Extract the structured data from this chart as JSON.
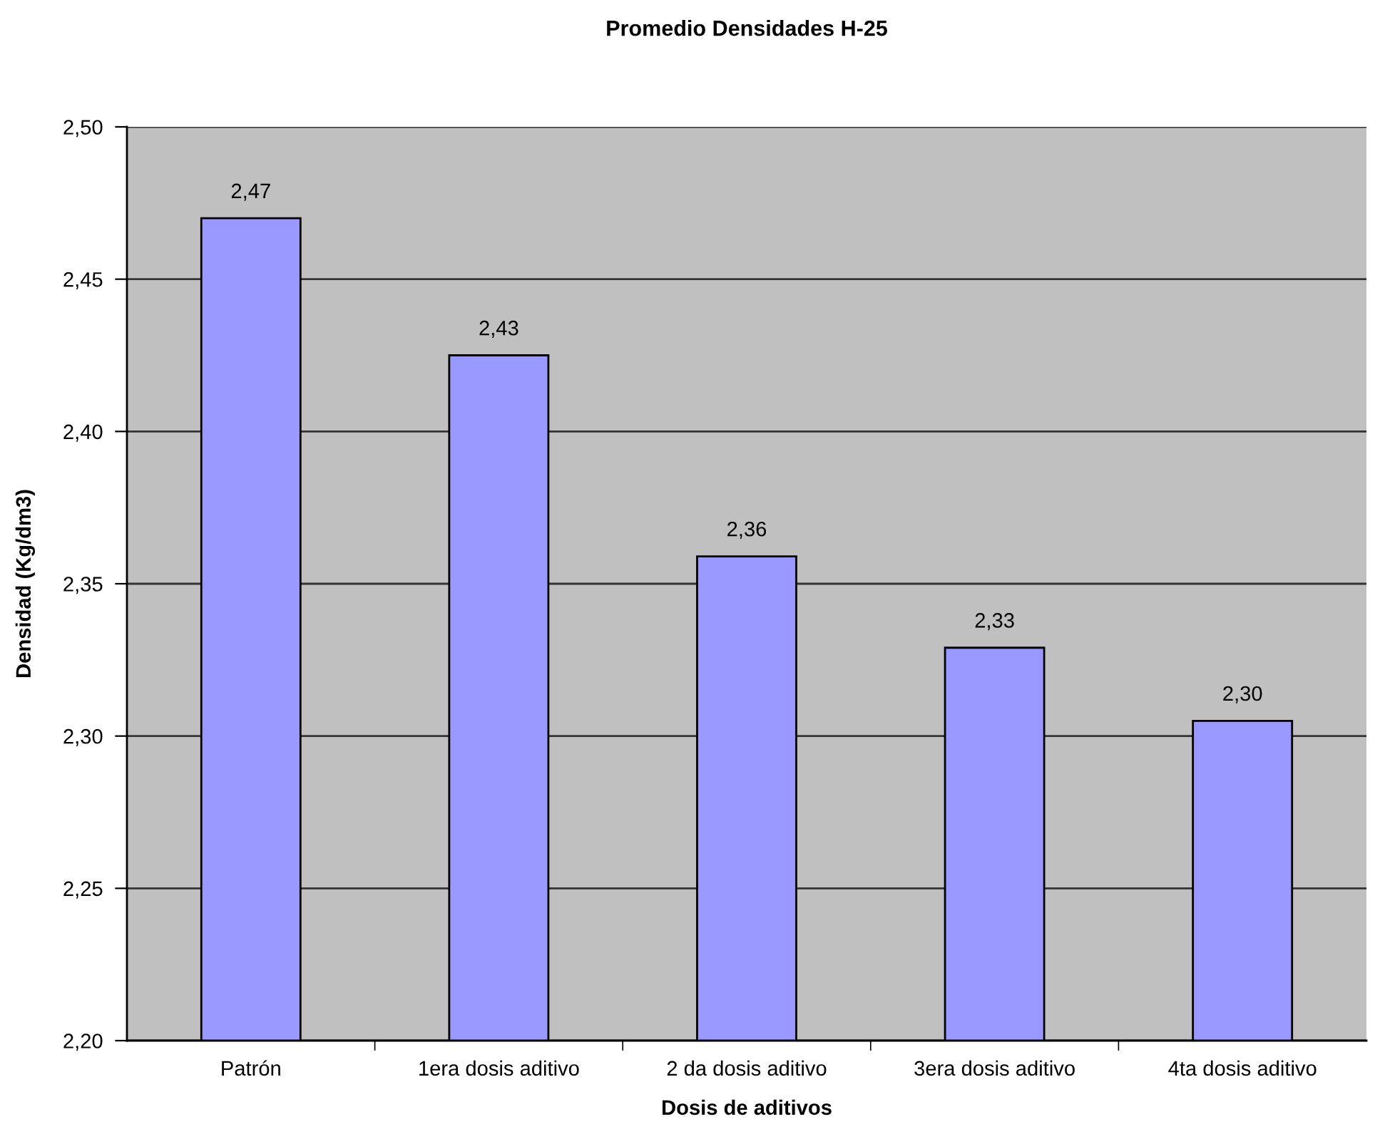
{
  "chart_data": {
    "type": "bar",
    "title": "Promedio Densidades H-25",
    "xlabel": "Dosis de aditivos",
    "ylabel": "Densidad (Kg/dm3)",
    "categories": [
      "Patrón",
      "1era dosis aditivo",
      "2 da dosis aditivo",
      "3era dosis aditivo",
      "4ta dosis aditivo"
    ],
    "values": [
      2.47,
      2.425,
      2.359,
      2.329,
      2.305
    ],
    "value_labels": [
      "2,47",
      "2,43",
      "2,36",
      "2,33",
      "2,30"
    ],
    "color": "#9999ff",
    "ylim": [
      2.2,
      2.5
    ],
    "yticks": [
      {
        "value": 2.2,
        "label": "2,20"
      },
      {
        "value": 2.25,
        "label": "2,25"
      },
      {
        "value": 2.3,
        "label": "2,30"
      },
      {
        "value": 2.35,
        "label": "2,35"
      },
      {
        "value": 2.4,
        "label": "2,40"
      },
      {
        "value": 2.45,
        "label": "2,45"
      },
      {
        "value": 2.5,
        "label": "2,50"
      }
    ],
    "grid": "y",
    "legend": false
  }
}
